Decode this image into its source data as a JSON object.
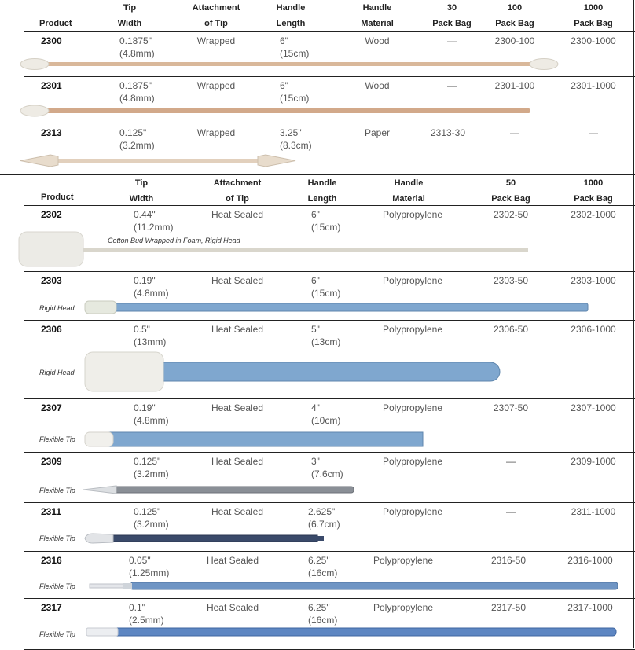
{
  "table1": {
    "headers": {
      "product": "Product",
      "tip_width": [
        "Tip",
        "Width"
      ],
      "attachment": [
        "Attachment",
        "of Tip"
      ],
      "handle_length": [
        "Handle",
        "Length"
      ],
      "handle_material": [
        "Handle",
        "Material"
      ],
      "pack30": [
        "30",
        "Pack Bag"
      ],
      "pack100": [
        "100",
        "Pack Bag"
      ],
      "pack1000": [
        "1000",
        "Pack Bag"
      ]
    },
    "rows": [
      {
        "product": "2300",
        "tip_width": "0.1875\"",
        "tip_width_mm": "(4.8mm)",
        "attachment": "Wrapped",
        "length": "6\"",
        "length_cm": "(15cm)",
        "material": "Wood",
        "pack30": "—",
        "pack100": "2300-100",
        "pack1000": "2300-1000"
      },
      {
        "product": "2301",
        "tip_width": "0.1875\"",
        "tip_width_mm": "(4.8mm)",
        "attachment": "Wrapped",
        "length": "6\"",
        "length_cm": "(15cm)",
        "material": "Wood",
        "pack30": "—",
        "pack100": "2301-100",
        "pack1000": "2301-1000"
      },
      {
        "product": "2313",
        "tip_width": "0.125\"",
        "tip_width_mm": "(3.2mm)",
        "attachment": "Wrapped",
        "length": "3.25\"",
        "length_cm": "(8.3cm)",
        "material": "Paper",
        "pack30": "2313-30",
        "pack100": "—",
        "pack1000": "—"
      }
    ]
  },
  "table2": {
    "headers": {
      "product": "Product",
      "tip_width": [
        "Tip",
        "Width"
      ],
      "attachment": [
        "Attachment",
        "of Tip"
      ],
      "handle_length": [
        "Handle",
        "Length"
      ],
      "handle_material": [
        "Handle",
        "Material"
      ],
      "pack50": [
        "50",
        "Pack Bag"
      ],
      "pack1000": [
        "1000",
        "Pack Bag"
      ]
    },
    "rows": [
      {
        "product": "2302",
        "tip_width": "0.44\"",
        "tip_width_mm": "(11.2mm)",
        "attachment": "Heat Sealed",
        "length": "6\"",
        "length_cm": "(15cm)",
        "material": "Polypropylene",
        "pack50": "2302-50",
        "pack1000": "2302-1000",
        "label": "Cotton Bud Wrapped in Foam, Rigid Head"
      },
      {
        "product": "2303",
        "tip_width": "0.19\"",
        "tip_width_mm": "(4.8mm)",
        "attachment": "Heat Sealed",
        "length": "6\"",
        "length_cm": "(15cm)",
        "material": "Polypropylene",
        "pack50": "2303-50",
        "pack1000": "2303-1000",
        "label": "Rigid Head"
      },
      {
        "product": "2306",
        "tip_width": "0.5\"",
        "tip_width_mm": "(13mm)",
        "attachment": "Heat Sealed",
        "length": "5\"",
        "length_cm": "(13cm)",
        "material": "Polypropylene",
        "pack50": "2306-50",
        "pack1000": "2306-1000",
        "label": "Rigid Head"
      },
      {
        "product": "2307",
        "tip_width": "0.19\"",
        "tip_width_mm": "(4.8mm)",
        "attachment": "Heat Sealed",
        "length": "4\"",
        "length_cm": "(10cm)",
        "material": "Polypropylene",
        "pack50": "2307-50",
        "pack1000": "2307-1000",
        "label": "Flexible Tip"
      },
      {
        "product": "2309",
        "tip_width": "0.125\"",
        "tip_width_mm": "(3.2mm)",
        "attachment": "Heat Sealed",
        "length": "3\"",
        "length_cm": "(7.6cm)",
        "material": "Polypropylene",
        "pack50": "—",
        "pack1000": "2309-1000",
        "label": "Flexible Tip"
      },
      {
        "product": "2311",
        "tip_width": "0.125\"",
        "tip_width_mm": "(3.2mm)",
        "attachment": "Heat Sealed",
        "length": "2.625\"",
        "length_cm": "(6.7cm)",
        "material": "Polypropylene",
        "pack50": "—",
        "pack1000": "2311-1000",
        "label": "Flexible Tip"
      },
      {
        "product": "2316",
        "tip_width": "0.05\"",
        "tip_width_mm": "(1.25mm)",
        "attachment": "Heat Sealed",
        "length": "6.25\"",
        "length_cm": "(16cm)",
        "material": "Polypropylene",
        "pack50": "2316-50",
        "pack1000": "2316-1000",
        "label": "Flexible Tip"
      },
      {
        "product": "2317",
        "tip_width": "0.1\"",
        "tip_width_mm": "(2.5mm)",
        "attachment": "Heat Sealed",
        "length": "6.25\"",
        "length_cm": "(16cm)",
        "material": "Polypropylene",
        "pack50": "2317-50",
        "pack1000": "2317-1000",
        "label": "Flexible Tip"
      }
    ]
  },
  "colors": {
    "wood": "#d9b89a",
    "foam": "#ecebe6",
    "blue_handle": "#7fa7cf",
    "dark_handle": "#3a4a6a",
    "gray_handle": "#8a8f96"
  }
}
